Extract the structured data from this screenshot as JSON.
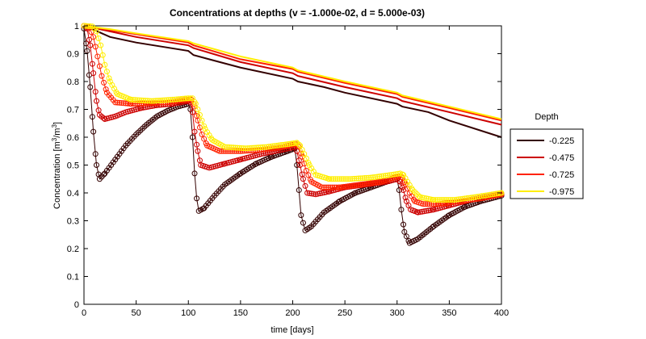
{
  "chart_data": {
    "type": "line",
    "title": "Concentrations at depths (v = -1.000e-02, d = 5.000e-03)",
    "xlabel": "time [days]",
    "ylabel": "Concentration [m³/m³]",
    "ylabel_parts": {
      "before": "Concentration [m",
      "sup1": "3",
      "mid": "/m",
      "sup2": "3",
      "after": "]"
    },
    "xlim": [
      0,
      400
    ],
    "ylim": [
      0,
      1
    ],
    "xticks": [
      0,
      50,
      100,
      150,
      200,
      250,
      300,
      350,
      400
    ],
    "yticks": [
      0,
      0.1,
      0.2,
      0.3,
      0.4,
      0.5,
      0.6,
      0.7,
      0.8,
      0.9,
      1
    ],
    "grid": false,
    "legend": {
      "title": "Depth",
      "placement": "right-outside"
    },
    "series": [
      {
        "name": "-0.225",
        "color": "#330000",
        "marker": "circle",
        "smooth": [
          [
            0,
            1
          ],
          [
            10,
            0.985
          ],
          [
            25,
            0.96
          ],
          [
            50,
            0.94
          ],
          [
            100,
            0.91
          ],
          [
            105,
            0.895
          ],
          [
            130,
            0.87
          ],
          [
            150,
            0.85
          ],
          [
            200,
            0.81
          ],
          [
            205,
            0.8
          ],
          [
            230,
            0.78
          ],
          [
            250,
            0.76
          ],
          [
            300,
            0.72
          ],
          [
            305,
            0.71
          ],
          [
            330,
            0.69
          ],
          [
            350,
            0.66
          ],
          [
            400,
            0.6
          ]
        ],
        "marked": [
          [
            0,
            0.99
          ],
          [
            3,
            0.91
          ],
          [
            6,
            0.78
          ],
          [
            9,
            0.62
          ],
          [
            12,
            0.5
          ],
          [
            15,
            0.45
          ],
          [
            20,
            0.47
          ],
          [
            30,
            0.52
          ],
          [
            40,
            0.57
          ],
          [
            50,
            0.61
          ],
          [
            60,
            0.645
          ],
          [
            70,
            0.675
          ],
          [
            80,
            0.695
          ],
          [
            90,
            0.71
          ],
          [
            100,
            0.72
          ],
          [
            102,
            0.7
          ],
          [
            104,
            0.6
          ],
          [
            106,
            0.47
          ],
          [
            108,
            0.38
          ],
          [
            110,
            0.335
          ],
          [
            115,
            0.345
          ],
          [
            125,
            0.39
          ],
          [
            135,
            0.43
          ],
          [
            150,
            0.47
          ],
          [
            165,
            0.505
          ],
          [
            180,
            0.53
          ],
          [
            195,
            0.55
          ],
          [
            202,
            0.56
          ],
          [
            204,
            0.5
          ],
          [
            206,
            0.41
          ],
          [
            208,
            0.32
          ],
          [
            212,
            0.265
          ],
          [
            218,
            0.28
          ],
          [
            230,
            0.33
          ],
          [
            245,
            0.37
          ],
          [
            260,
            0.4
          ],
          [
            275,
            0.42
          ],
          [
            290,
            0.44
          ],
          [
            300,
            0.45
          ],
          [
            302,
            0.41
          ],
          [
            304,
            0.34
          ],
          [
            307,
            0.26
          ],
          [
            312,
            0.22
          ],
          [
            320,
            0.235
          ],
          [
            335,
            0.28
          ],
          [
            350,
            0.32
          ],
          [
            365,
            0.35
          ],
          [
            380,
            0.37
          ],
          [
            400,
            0.39
          ]
        ]
      },
      {
        "name": "-0.475",
        "color": "#cc0000",
        "marker": "circle",
        "smooth": [
          [
            0,
            1
          ],
          [
            25,
            0.98
          ],
          [
            50,
            0.96
          ],
          [
            100,
            0.93
          ],
          [
            105,
            0.92
          ],
          [
            150,
            0.87
          ],
          [
            200,
            0.83
          ],
          [
            205,
            0.82
          ],
          [
            250,
            0.78
          ],
          [
            300,
            0.74
          ],
          [
            305,
            0.73
          ],
          [
            350,
            0.69
          ],
          [
            400,
            0.645
          ]
        ],
        "marked": [
          [
            0,
            1
          ],
          [
            3,
            0.99
          ],
          [
            6,
            0.93
          ],
          [
            9,
            0.83
          ],
          [
            12,
            0.73
          ],
          [
            15,
            0.68
          ],
          [
            20,
            0.665
          ],
          [
            30,
            0.675
          ],
          [
            40,
            0.69
          ],
          [
            55,
            0.705
          ],
          [
            70,
            0.715
          ],
          [
            85,
            0.72
          ],
          [
            100,
            0.73
          ],
          [
            102,
            0.725
          ],
          [
            104,
            0.69
          ],
          [
            106,
            0.62
          ],
          [
            109,
            0.55
          ],
          [
            112,
            0.5
          ],
          [
            120,
            0.49
          ],
          [
            135,
            0.505
          ],
          [
            150,
            0.52
          ],
          [
            170,
            0.54
          ],
          [
            190,
            0.555
          ],
          [
            202,
            0.565
          ],
          [
            204,
            0.55
          ],
          [
            207,
            0.5
          ],
          [
            210,
            0.45
          ],
          [
            214,
            0.4
          ],
          [
            222,
            0.395
          ],
          [
            235,
            0.405
          ],
          [
            250,
            0.42
          ],
          [
            270,
            0.43
          ],
          [
            290,
            0.44
          ],
          [
            300,
            0.45
          ],
          [
            303,
            0.44
          ],
          [
            306,
            0.41
          ],
          [
            309,
            0.37
          ],
          [
            313,
            0.34
          ],
          [
            320,
            0.33
          ],
          [
            335,
            0.34
          ],
          [
            350,
            0.355
          ],
          [
            370,
            0.375
          ],
          [
            385,
            0.385
          ],
          [
            400,
            0.395
          ]
        ]
      },
      {
        "name": "-0.725",
        "color": "#ff2200",
        "marker": "circle",
        "smooth": [
          [
            0,
            1
          ],
          [
            25,
            0.985
          ],
          [
            50,
            0.97
          ],
          [
            100,
            0.94
          ],
          [
            105,
            0.93
          ],
          [
            150,
            0.88
          ],
          [
            200,
            0.845
          ],
          [
            205,
            0.835
          ],
          [
            250,
            0.795
          ],
          [
            300,
            0.755
          ],
          [
            305,
            0.745
          ],
          [
            350,
            0.705
          ],
          [
            400,
            0.66
          ]
        ],
        "marked": [
          [
            0,
            1
          ],
          [
            5,
            0.995
          ],
          [
            9,
            0.96
          ],
          [
            13,
            0.89
          ],
          [
            17,
            0.82
          ],
          [
            22,
            0.76
          ],
          [
            30,
            0.725
          ],
          [
            45,
            0.72
          ],
          [
            60,
            0.722
          ],
          [
            80,
            0.725
          ],
          [
            100,
            0.735
          ],
          [
            103,
            0.735
          ],
          [
            106,
            0.71
          ],
          [
            109,
            0.66
          ],
          [
            113,
            0.61
          ],
          [
            118,
            0.57
          ],
          [
            130,
            0.55
          ],
          [
            150,
            0.55
          ],
          [
            170,
            0.555
          ],
          [
            190,
            0.565
          ],
          [
            203,
            0.575
          ],
          [
            206,
            0.565
          ],
          [
            209,
            0.53
          ],
          [
            213,
            0.48
          ],
          [
            218,
            0.44
          ],
          [
            228,
            0.42
          ],
          [
            245,
            0.42
          ],
          [
            265,
            0.43
          ],
          [
            285,
            0.44
          ],
          [
            302,
            0.46
          ],
          [
            305,
            0.455
          ],
          [
            308,
            0.43
          ],
          [
            312,
            0.4
          ],
          [
            317,
            0.37
          ],
          [
            325,
            0.36
          ],
          [
            340,
            0.36
          ],
          [
            360,
            0.37
          ],
          [
            380,
            0.38
          ],
          [
            400,
            0.395
          ]
        ]
      },
      {
        "name": "-0.975",
        "color": "#ffee00",
        "marker": "circle",
        "smooth": [
          [
            0,
            1
          ],
          [
            25,
            0.988
          ],
          [
            50,
            0.973
          ],
          [
            100,
            0.945
          ],
          [
            105,
            0.937
          ],
          [
            150,
            0.89
          ],
          [
            200,
            0.85
          ],
          [
            205,
            0.84
          ],
          [
            250,
            0.8
          ],
          [
            300,
            0.76
          ],
          [
            305,
            0.75
          ],
          [
            350,
            0.71
          ],
          [
            400,
            0.665
          ]
        ],
        "marked": [
          [
            0,
            1
          ],
          [
            8,
            0.998
          ],
          [
            12,
            0.98
          ],
          [
            16,
            0.93
          ],
          [
            20,
            0.86
          ],
          [
            25,
            0.8
          ],
          [
            32,
            0.755
          ],
          [
            45,
            0.735
          ],
          [
            65,
            0.73
          ],
          [
            85,
            0.735
          ],
          [
            100,
            0.74
          ],
          [
            104,
            0.74
          ],
          [
            107,
            0.72
          ],
          [
            111,
            0.68
          ],
          [
            116,
            0.63
          ],
          [
            123,
            0.59
          ],
          [
            135,
            0.565
          ],
          [
            155,
            0.56
          ],
          [
            175,
            0.565
          ],
          [
            195,
            0.575
          ],
          [
            204,
            0.58
          ],
          [
            207,
            0.57
          ],
          [
            211,
            0.54
          ],
          [
            216,
            0.5
          ],
          [
            222,
            0.465
          ],
          [
            235,
            0.45
          ],
          [
            255,
            0.45
          ],
          [
            275,
            0.455
          ],
          [
            295,
            0.465
          ],
          [
            303,
            0.47
          ],
          [
            306,
            0.465
          ],
          [
            310,
            0.44
          ],
          [
            315,
            0.41
          ],
          [
            322,
            0.385
          ],
          [
            335,
            0.375
          ],
          [
            355,
            0.375
          ],
          [
            375,
            0.385
          ],
          [
            400,
            0.4
          ]
        ]
      }
    ]
  }
}
